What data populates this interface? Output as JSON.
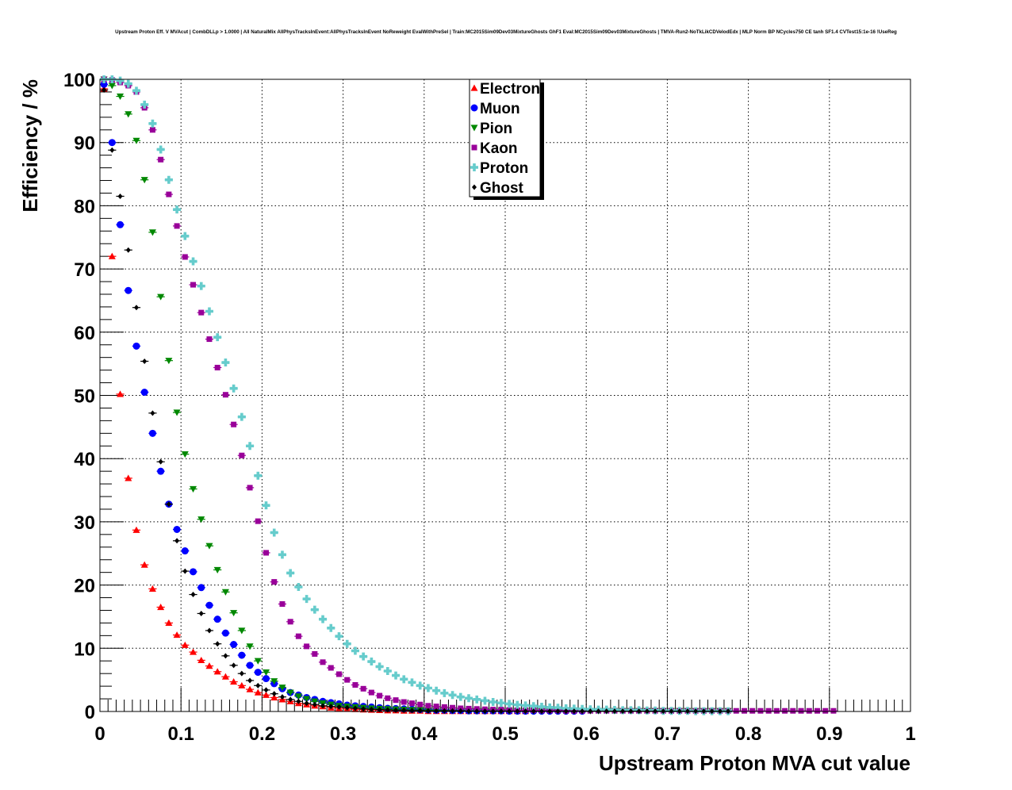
{
  "chart_data": {
    "type": "scatter",
    "title": "Upstream Proton Eff. V MVAcut | CombDLLp > 1.0000 | All NaturalMix AllPhysTracksInEvent:AllPhysTracksInEvent NoReweight EvalWithPreSel | Train:MC2015Sim09Dev03MixtureGhosts GhF1 Eval:MC2015Sim09Dev03MixtureGhosts | TMVA-Run2-NoTkLikCDVelodEdx | MLP Norm BP NCycles750 CE tanh SF1.4 CVTest15:1e-16 !UseReg",
    "xlabel": "Upstream Proton MVA cut value",
    "ylabel": "Efficiency / %",
    "xlim": [
      0,
      1
    ],
    "ylim": [
      0,
      100
    ],
    "grid": true,
    "legend_position": "top-center",
    "x_ticks": [
      "0",
      "0.1",
      "0.2",
      "0.3",
      "0.4",
      "0.5",
      "0.6",
      "0.7",
      "0.8",
      "0.9",
      "1"
    ],
    "y_ticks": [
      "0",
      "10",
      "20",
      "30",
      "40",
      "50",
      "60",
      "70",
      "80",
      "90",
      "100"
    ],
    "x_start": 0.005,
    "x_step": 0.01,
    "series": [
      {
        "name": "Electron",
        "color": "#ff0000",
        "marker": "triangle-up",
        "values": [
          98.5,
          72,
          50.2,
          36.9,
          28.7,
          23.2,
          19.4,
          16.5,
          14.0,
          12.1,
          10.5,
          9.4,
          8.1,
          7.2,
          6.3,
          5.5,
          4.7,
          4.1,
          3.5,
          3.0,
          2.6,
          2.2,
          1.9,
          1.6,
          1.3,
          1.1,
          0.9,
          0.8,
          0.6,
          0.5,
          0.4,
          0.35,
          0.3,
          0.25,
          0.2,
          0.15,
          0.15,
          0.1,
          0.1,
          0.1,
          0.05,
          0.05,
          0.05,
          0.05,
          0.05,
          0.05,
          0.05,
          0.05,
          0.05,
          0.05,
          0.05,
          0.05,
          0.05
        ]
      },
      {
        "name": "Muon",
        "color": "#0000ff",
        "marker": "circle",
        "values": [
          99.2,
          90,
          77,
          66.6,
          57.8,
          50.5,
          44,
          38,
          32.8,
          28.8,
          25.4,
          22.1,
          19.6,
          16.8,
          14.6,
          12.4,
          10.6,
          8.9,
          7.3,
          6.2,
          5.2,
          4.4,
          3.6,
          3.0,
          2.6,
          2.2,
          1.9,
          1.6,
          1.4,
          1.2,
          1.0,
          0.9,
          0.8,
          0.7,
          0.6,
          0.5,
          0.45,
          0.4,
          0.35,
          0.3,
          0.25,
          0.2,
          0.2,
          0.15,
          0.15,
          0.1,
          0.1,
          0.1,
          0.1,
          0.1,
          0.05,
          0.05,
          0.05,
          0.05,
          0.05,
          0.05,
          0.05,
          0.05,
          0.05,
          0.05
        ]
      },
      {
        "name": "Pion",
        "color": "#008800",
        "marker": "triangle-down",
        "values": [
          100,
          99,
          97.3,
          94.5,
          90.3,
          84.1,
          75.8,
          65.6,
          55.5,
          47.3,
          40.7,
          35.2,
          30.4,
          26.2,
          22.4,
          18.9,
          15.6,
          12.8,
          10.3,
          8.0,
          6.2,
          4.8,
          3.8,
          3.0,
          2.4,
          2.0,
          1.6,
          1.3,
          1.1,
          0.9,
          0.8,
          0.7,
          0.6,
          0.5,
          0.45,
          0.4,
          0.35,
          0.3,
          0.25,
          0.25,
          0.2,
          0.2,
          0.15,
          0.15,
          0.15,
          0.1,
          0.1,
          0.1,
          0.1,
          0.1,
          0.1,
          0.1,
          0.1,
          0.1,
          0.1,
          0.1,
          0.1,
          0.1,
          0.1,
          0.1,
          0.1,
          0.1,
          0.1,
          0.1,
          0.1,
          0.1,
          0.1,
          0.1,
          0.1,
          0.1,
          0.1,
          0.1,
          0.1,
          0.1,
          0.1,
          0.1,
          0.1,
          0.1
        ]
      },
      {
        "name": "Kaon",
        "color": "#990099",
        "marker": "square",
        "values": [
          100,
          99.9,
          99.5,
          99,
          98,
          95.5,
          92,
          87.3,
          81.8,
          76.8,
          71.9,
          67.5,
          63.1,
          58.9,
          54.4,
          50.1,
          45.4,
          40.5,
          35.4,
          30.1,
          25.1,
          20.5,
          17,
          14.2,
          11.9,
          10.3,
          9.1,
          7.8,
          6.9,
          5.9,
          5,
          4.2,
          3.6,
          3.0,
          2.5,
          2.1,
          1.8,
          1.5,
          1.3,
          1.1,
          0.9,
          0.8,
          0.7,
          0.6,
          0.5,
          0.45,
          0.4,
          0.35,
          0.3,
          0.3,
          0.25,
          0.2,
          0.2,
          0.2,
          0.15,
          0.15,
          0.15,
          0.1,
          0.1,
          0.1,
          0.1,
          0.1,
          0.1,
          0.1,
          0.1,
          0.1,
          0.1,
          0.1,
          0.1,
          0.1,
          0.1,
          0.1,
          0.1,
          0.1,
          0.1,
          0.1,
          0.1,
          0.1,
          0.1,
          0.1,
          0.1,
          0.1,
          0.1,
          0.1,
          0.1,
          0.1,
          0.1,
          0.1,
          0.1,
          0.1,
          0.1
        ]
      },
      {
        "name": "Proton",
        "color": "#66cccc",
        "marker": "cross",
        "values": [
          100,
          100,
          99.8,
          99.3,
          98.2,
          96,
          93,
          88.9,
          84.1,
          79.4,
          75.2,
          71.2,
          67.3,
          63.3,
          59.2,
          55.2,
          51.1,
          46.6,
          42,
          37.3,
          32.6,
          28.3,
          24.8,
          21.9,
          19.7,
          17.8,
          16.1,
          14.6,
          13.2,
          11.9,
          10.7,
          9.6,
          8.7,
          7.9,
          7.1,
          6.4,
          5.7,
          5.1,
          4.6,
          4.1,
          3.7,
          3.3,
          2.9,
          2.6,
          2.3,
          2.1,
          1.9,
          1.7,
          1.5,
          1.35,
          1.2,
          1.05,
          0.95,
          0.85,
          0.75,
          0.65,
          0.6,
          0.5,
          0.45,
          0.4,
          0.35,
          0.3,
          0.3,
          0.25,
          0.2,
          0.2,
          0.2,
          0.15,
          0.15,
          0.1,
          0.1,
          0.1,
          0.1,
          0.05,
          0.05,
          0.05,
          0.05,
          0.05
        ]
      },
      {
        "name": "Ghost",
        "color": "#000000",
        "marker": "diamond",
        "values": [
          98.3,
          88.8,
          81.5,
          73,
          63.9,
          55.4,
          47.2,
          39.5,
          32.8,
          27,
          22.2,
          18.5,
          15.5,
          12.8,
          10.7,
          8.8,
          7.3,
          6,
          4.9,
          4.1,
          3.4,
          2.8,
          2.3,
          1.9,
          1.6,
          1.3,
          1.1,
          0.9,
          0.8,
          0.7,
          0.6,
          0.5,
          0.4,
          0.35,
          0.3,
          0.25,
          0.2,
          0.2,
          0.15,
          0.15,
          0.1,
          0.1,
          0.1,
          0.1,
          0.1,
          0.05,
          0.05,
          0.05,
          0.05,
          0.05,
          0.05,
          0.05,
          0.05,
          0.05,
          0.05,
          0.05,
          0.05,
          0.05,
          0.05,
          0.05,
          0.05,
          0.05,
          0.05,
          0.05,
          0.05,
          0.05,
          0.05,
          0.05,
          0.05,
          0.05,
          0.05,
          0.05,
          0.05,
          0.05,
          0.05,
          0.05,
          0.05,
          0.05
        ]
      }
    ]
  }
}
